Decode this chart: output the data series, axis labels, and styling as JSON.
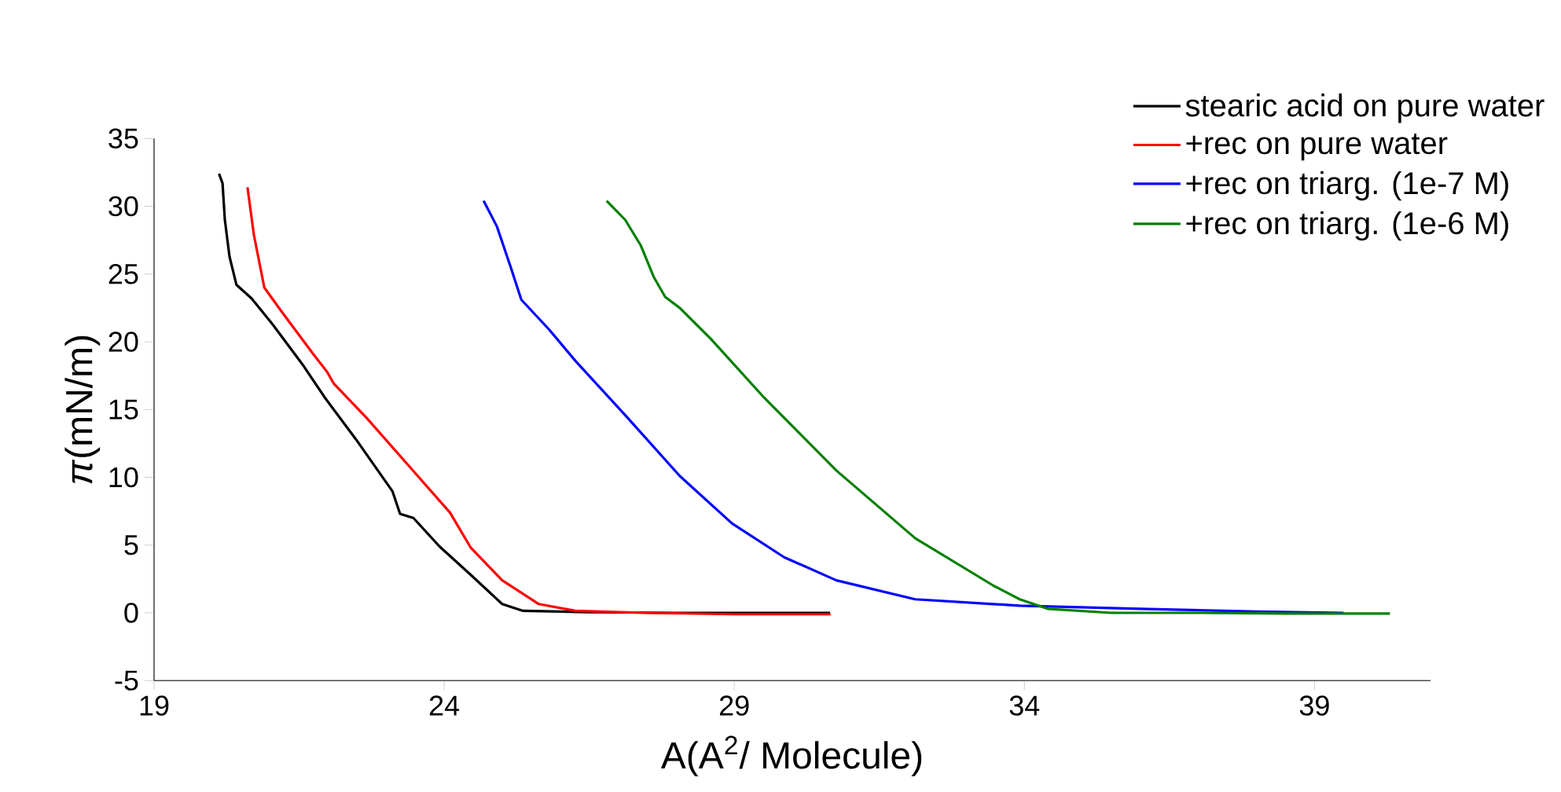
{
  "chart_data": {
    "type": "line",
    "xlabel": "A(A$^{2}$/ Molecule)",
    "ylabel": "*π*(mN/m)",
    "xlim": [
      19,
      41
    ],
    "xticks": [
      19,
      24,
      29,
      34,
      39
    ],
    "ylim": [
      -5,
      35
    ],
    "yticks": [
      -5,
      0,
      5,
      10,
      15,
      20,
      25,
      30,
      35
    ],
    "grid": false,
    "legend": "top right",
    "marker": "none",
    "line_style": "solid",
    "series": [
      {
        "name": "stearic acid on pure water",
        "color": "#000000",
        "x": [
          20.12,
          20.18,
          20.22,
          20.3,
          20.42,
          20.68,
          21.04,
          21.58,
          21.94,
          22.48,
          23.11,
          23.24,
          23.47,
          23.92,
          24.46,
          25.0,
          25.36,
          26.5,
          28.0,
          29.5,
          30.65
        ],
        "values": [
          32.4,
          31.7,
          29.0,
          26.3,
          24.2,
          23.2,
          21.3,
          18.2,
          15.9,
          12.8,
          8.96,
          7.3,
          7.0,
          4.9,
          2.8,
          0.65,
          0.15,
          0.05,
          0.0,
          0.0,
          0.0
        ]
      },
      {
        "name": "+rec on pure water",
        "color": "#ff0000",
        "x": [
          20.61,
          20.72,
          20.9,
          21.22,
          21.76,
          21.98,
          22.1,
          22.66,
          23.38,
          24.1,
          24.46,
          25.0,
          25.63,
          26.26,
          27.5,
          29.0,
          30.66
        ],
        "values": [
          31.4,
          27.9,
          24.0,
          22.1,
          19.0,
          17.8,
          16.9,
          14.4,
          10.9,
          7.4,
          4.8,
          2.4,
          0.65,
          0.15,
          0.0,
          -0.1,
          -0.1
        ]
      },
      {
        "name": "+rec on triarg. (1e-7 M)",
        "color": "#0000ff",
        "x": [
          24.68,
          24.91,
          25.14,
          25.33,
          25.81,
          26.26,
          27.16,
          28.06,
          28.96,
          29.86,
          30.76,
          32.12,
          33.92,
          36.0,
          38.0,
          39.5
        ],
        "values": [
          30.4,
          28.5,
          25.6,
          23.1,
          20.9,
          18.6,
          14.4,
          10.1,
          6.6,
          4.1,
          2.4,
          1.0,
          0.53,
          0.3,
          0.1,
          0.0
        ]
      },
      {
        "name": "+rec on triarg. (1e-6 M)",
        "color": "#008000",
        "x": [
          26.8,
          27.12,
          27.39,
          27.61,
          27.81,
          28.06,
          28.6,
          29.51,
          30.76,
          32.12,
          33.47,
          33.92,
          34.4,
          35.5,
          37.0,
          38.5,
          40.3
        ],
        "values": [
          30.4,
          29.0,
          27.1,
          24.8,
          23.3,
          22.5,
          20.2,
          15.9,
          10.5,
          5.5,
          2.0,
          1.0,
          0.3,
          0.0,
          0.0,
          -0.05,
          -0.05
        ]
      }
    ]
  }
}
